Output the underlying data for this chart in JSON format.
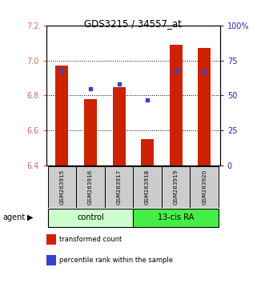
{
  "title": "GDS3215 / 34557_at",
  "samples": [
    "GSM263915",
    "GSM263916",
    "GSM263917",
    "GSM263918",
    "GSM263919",
    "GSM263920"
  ],
  "bar_values": [
    6.97,
    6.78,
    6.85,
    6.55,
    7.09,
    7.07
  ],
  "blue_values": [
    68,
    55,
    58,
    47,
    68,
    67
  ],
  "ylim_left": [
    6.4,
    7.2
  ],
  "ylim_right": [
    0,
    100
  ],
  "yticks_left": [
    6.4,
    6.6,
    6.8,
    7.0,
    7.2
  ],
  "yticks_right": [
    0,
    25,
    50,
    75,
    100
  ],
  "ytick_labels_right": [
    "0",
    "25",
    "50",
    "75",
    "100%"
  ],
  "bar_color": "#cc2200",
  "blue_color": "#3344cc",
  "groups": [
    {
      "label": "control",
      "indices": [
        0,
        1,
        2
      ],
      "color": "#ccffcc"
    },
    {
      "label": "13-cis RA",
      "indices": [
        3,
        4,
        5
      ],
      "color": "#44ee44"
    }
  ],
  "agent_label": "agent",
  "legend_items": [
    {
      "label": "transformed count",
      "color": "#cc2200"
    },
    {
      "label": "percentile rank within the sample",
      "color": "#3344cc"
    }
  ],
  "bar_width": 0.45,
  "background_color": "#ffffff",
  "left_tick_color": "#dd6655",
  "right_tick_color": "#2222cc"
}
